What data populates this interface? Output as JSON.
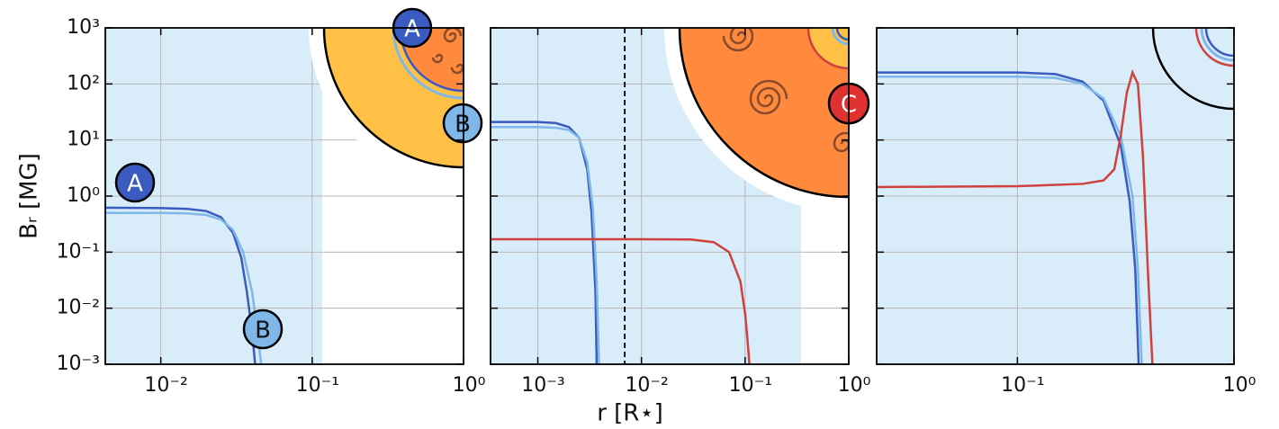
{
  "ylabel": "Bᵣ [MG]",
  "xlabel": "r [R⋆]",
  "chart_data": [
    {
      "type": "line",
      "xscale": "log",
      "yscale": "log",
      "grid": true,
      "show_ytick_labels": true,
      "xlim": [
        0.0043,
        1
      ],
      "ylim": [
        0.001,
        1000
      ],
      "xticks": [
        {
          "value": 0.01,
          "label": "10⁻²"
        },
        {
          "value": 0.1,
          "label": "10⁻¹"
        },
        {
          "value": 1,
          "label": "10⁰"
        }
      ],
      "yticks": [
        {
          "value": 0.001,
          "label": "10⁻³"
        },
        {
          "value": 0.01,
          "label": "10⁻²"
        },
        {
          "value": 0.1,
          "label": "10⁻¹"
        },
        {
          "value": 1,
          "label": "10⁰"
        },
        {
          "value": 10,
          "label": "10¹"
        },
        {
          "value": 100,
          "label": "10²"
        },
        {
          "value": 1000,
          "label": "10³"
        }
      ],
      "series": [
        {
          "name": "A",
          "color": "#3a5bbf",
          "x": [
            0.0043,
            0.01,
            0.015,
            0.02,
            0.025,
            0.03,
            0.034,
            0.037,
            0.04,
            0.042
          ],
          "values": [
            0.62,
            0.61,
            0.59,
            0.54,
            0.42,
            0.22,
            0.08,
            0.02,
            0.004,
            0.001
          ]
        },
        {
          "name": "B",
          "color": "#7fb8e8",
          "x": [
            0.0043,
            0.01,
            0.015,
            0.02,
            0.025,
            0.03,
            0.035,
            0.04,
            0.043,
            0.046
          ],
          "values": [
            0.5,
            0.5,
            0.49,
            0.46,
            0.38,
            0.25,
            0.1,
            0.02,
            0.005,
            0.001
          ]
        }
      ]
    },
    {
      "type": "line",
      "xscale": "log",
      "yscale": "log",
      "grid": true,
      "show_ytick_labels": false,
      "xlim": [
        0.00035,
        1
      ],
      "ylim": [
        0.001,
        1000
      ],
      "xticks": [
        {
          "value": 0.001,
          "label": "10⁻³"
        },
        {
          "value": 0.01,
          "label": "10⁻²"
        },
        {
          "value": 0.1,
          "label": "10⁻¹"
        },
        {
          "value": 1,
          "label": "10⁰"
        }
      ],
      "yticks": [
        0.001,
        0.01,
        0.1,
        1,
        10,
        100,
        1000
      ],
      "vlines": [
        0.0069
      ],
      "series": [
        {
          "name": "A",
          "color": "#3a5bbf",
          "x": [
            0.00035,
            0.001,
            0.0015,
            0.002,
            0.0025,
            0.003,
            0.0033,
            0.0036,
            0.0037
          ],
          "values": [
            21,
            21,
            20,
            17,
            11,
            3,
            0.5,
            0.02,
            0.001
          ]
        },
        {
          "name": "B",
          "color": "#7fb8e8",
          "x": [
            0.00035,
            0.001,
            0.0015,
            0.002,
            0.0025,
            0.003,
            0.0034,
            0.0037,
            0.0039
          ],
          "values": [
            17,
            17,
            16.5,
            15,
            11,
            4,
            0.6,
            0.03,
            0.001
          ]
        },
        {
          "name": "C",
          "color": "#d0413e",
          "x": [
            0.00035,
            0.01,
            0.03,
            0.05,
            0.07,
            0.09,
            0.1,
            0.105,
            0.11
          ],
          "values": [
            0.17,
            0.17,
            0.168,
            0.15,
            0.1,
            0.03,
            0.008,
            0.003,
            0.001
          ]
        }
      ]
    },
    {
      "type": "line",
      "xscale": "log",
      "yscale": "log",
      "grid": true,
      "show_ytick_labels": false,
      "xlim": [
        0.0224,
        1
      ],
      "ylim": [
        0.001,
        1000
      ],
      "xticks": [
        {
          "value": 0.1,
          "label": "10⁻¹"
        },
        {
          "value": 1,
          "label": "10⁰"
        }
      ],
      "yticks": [
        0.001,
        0.01,
        0.1,
        1,
        10,
        100,
        1000
      ],
      "series": [
        {
          "name": "A",
          "color": "#3a5bbf",
          "x": [
            0.0224,
            0.1,
            0.15,
            0.2,
            0.25,
            0.3,
            0.33,
            0.35,
            0.363
          ],
          "values": [
            160,
            160,
            150,
            110,
            50,
            8,
            0.8,
            0.05,
            0.001
          ]
        },
        {
          "name": "B",
          "color": "#7fb8e8",
          "x": [
            0.0224,
            0.1,
            0.15,
            0.2,
            0.25,
            0.3,
            0.34,
            0.36,
            0.375
          ],
          "values": [
            135,
            135,
            128,
            100,
            55,
            12,
            1,
            0.05,
            0.001
          ]
        },
        {
          "name": "C",
          "color": "#d0413e",
          "x": [
            0.0224,
            0.1,
            0.2,
            0.25,
            0.28,
            0.3,
            0.32,
            0.34,
            0.36,
            0.38,
            0.4,
            0.42
          ],
          "values": [
            1.45,
            1.5,
            1.65,
            1.9,
            3,
            12,
            70,
            160,
            100,
            5,
            0.05,
            0.001
          ]
        }
      ]
    }
  ]
}
